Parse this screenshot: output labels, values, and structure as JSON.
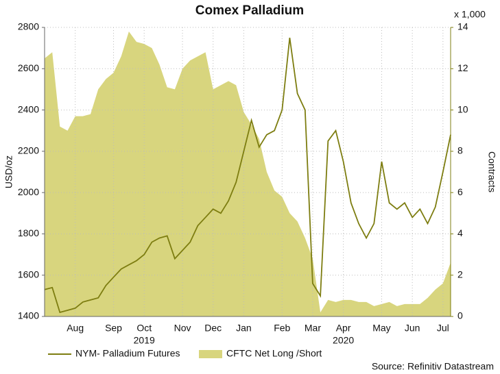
{
  "chart_data": {
    "type": "line",
    "title": "Comex Palladium",
    "y_label": "USD/oz",
    "y2_label": "Contracts",
    "y2_multiplier": "x 1,000",
    "source": "Source: Refinitiv Datastream",
    "years": [
      "2019",
      "2020"
    ],
    "categories": [
      null,
      null,
      null,
      null,
      "Aug",
      null,
      null,
      null,
      null,
      "Sep",
      null,
      null,
      null,
      "Oct",
      null,
      null,
      null,
      null,
      "Nov",
      null,
      null,
      null,
      "Dec",
      null,
      null,
      null,
      "Jan",
      null,
      null,
      null,
      null,
      "Feb",
      null,
      null,
      null,
      "Mar",
      null,
      null,
      null,
      "Apr",
      null,
      null,
      null,
      null,
      "May",
      null,
      null,
      null,
      "Jun",
      null,
      null,
      null,
      "Jul",
      null
    ],
    "series": [
      {
        "name": "NYM- Palladium Futures",
        "type": "line",
        "axis": "y",
        "color": "#7d7d10",
        "values": [
          1530,
          1540,
          1420,
          1430,
          1440,
          1470,
          1480,
          1490,
          1550,
          1590,
          1630,
          1650,
          1670,
          1700,
          1760,
          1780,
          1790,
          1680,
          1720,
          1760,
          1840,
          1880,
          1920,
          1900,
          1960,
          2050,
          2200,
          2350,
          2220,
          2280,
          2300,
          2400,
          2750,
          2480,
          2400,
          1560,
          1500,
          2250,
          2300,
          2150,
          1950,
          1850,
          1780,
          1850,
          2150,
          1950,
          1920,
          1950,
          1880,
          1920,
          1850,
          1930,
          2100,
          2280
        ]
      },
      {
        "name": "CFTC Net Long /Short",
        "type": "area",
        "axis": "y2",
        "color": "#d8d57e",
        "values": [
          12.5,
          12.8,
          9.2,
          9.0,
          9.7,
          9.7,
          9.8,
          11.0,
          11.5,
          11.8,
          12.6,
          13.8,
          13.3,
          13.2,
          13.0,
          12.2,
          11.1,
          11.0,
          12.0,
          12.4,
          12.6,
          12.8,
          11.0,
          11.2,
          11.4,
          11.2,
          9.9,
          9.3,
          8.6,
          7.0,
          6.1,
          5.8,
          5.0,
          4.6,
          3.8,
          2.8,
          0.2,
          0.8,
          0.7,
          0.8,
          0.8,
          0.7,
          0.7,
          0.5,
          0.6,
          0.7,
          0.5,
          0.6,
          0.6,
          0.6,
          0.9,
          1.3,
          1.6,
          2.6
        ]
      }
    ],
    "ylim": [
      1400,
      2800
    ],
    "yticks": [
      1400,
      1600,
      1800,
      2000,
      2200,
      2400,
      2600,
      2800
    ],
    "y2lim": [
      0,
      14
    ],
    "y2ticks": [
      0,
      2,
      4,
      6,
      8,
      10,
      12,
      14
    ],
    "grid": true
  }
}
